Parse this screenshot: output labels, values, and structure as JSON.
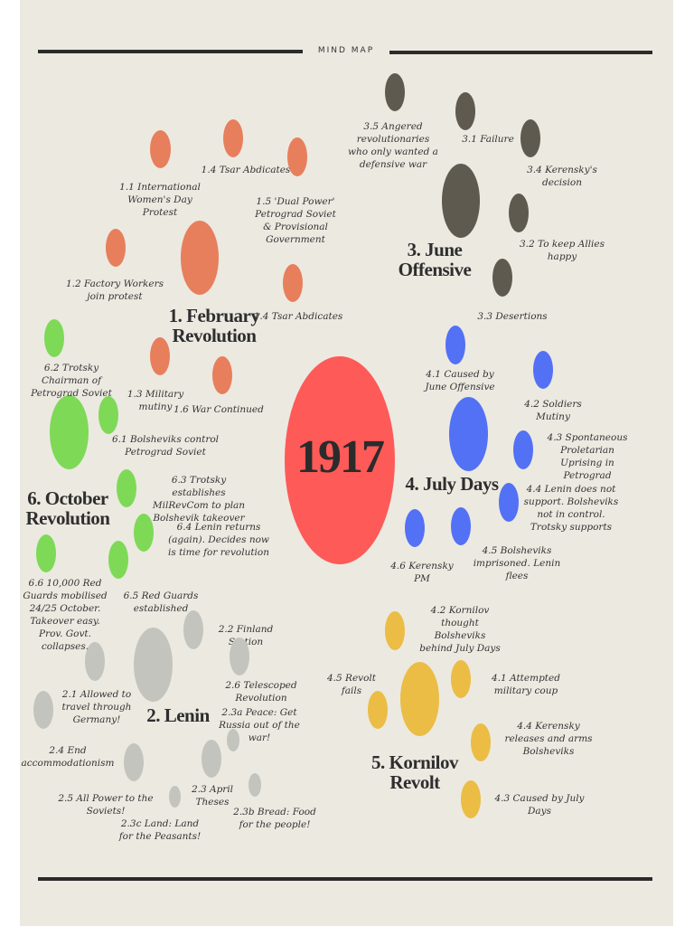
{
  "header": {
    "title": "MIND MAP"
  },
  "center": {
    "label": "1917"
  },
  "colors": {
    "february": "#e77f5c",
    "june": "#5e5a50",
    "july": "#5371f5",
    "kornilov": "#ebbd45",
    "october": "#7ed957",
    "lenin": "#c3c4bd",
    "center": "#fd5a58",
    "background": "#ece9e1"
  },
  "february": {
    "title_num": "1.",
    "title_line1": "February",
    "title_line2": "Revolution",
    "items": {
      "i11": "1.1 International Women's Day Protest",
      "i12": "1.2 Factory Workers join protest",
      "i13": "1.3 Military mutiny",
      "i14a": "1.4 Tsar Abdicates",
      "i14b": "1.4 Tsar Abdicates",
      "i15": "1.5 'Dual Power' Petrograd Soviet & Provisional Government",
      "i16": "1.6 War Continued"
    }
  },
  "june": {
    "title_line1": "3. June",
    "title_line2": "Offensive",
    "items": {
      "i31": "3.1 Failure",
      "i32": "3.2 To keep Allies happy",
      "i33": "3.3 Desertions",
      "i34": "3.4 Kerensky's decision",
      "i35": "3.5 Angered revolutionaries who only wanted a defensive war"
    }
  },
  "july": {
    "title": "4. July Days",
    "items": {
      "i41": "4.1 Caused by June Offensive",
      "i42": "4.2 Soldiers Mutiny",
      "i43": "4.3 Spontaneous Proletarian Uprising in Petrograd",
      "i44": "4.4 Lenin does not support. Bolsheviks not in control. Trotsky supports",
      "i45": "4.5 Bolsheviks imprisoned. Lenin flees",
      "i46": "4.6 Kerensky PM"
    }
  },
  "kornilov": {
    "title_line1": "5. Kornilov",
    "title_line2": "Revolt",
    "items": {
      "i41": "4.1 Attempted military coup",
      "i42": "4.2 Kornilov thought Bolsheviks behind July Days",
      "i43": "4.3 Caused by July Days",
      "i44": "4.4 Kerensky releases and arms Bolsheviks",
      "i45": "4.5 Revolt fails"
    }
  },
  "october": {
    "title_line1": "6. October",
    "title_line2": "Revolution",
    "items": {
      "i61": "6.1 Bolsheviks control Petrograd Soviet",
      "i62": "6.2 Trotsky Chairman of Petrograd Soviet",
      "i63": "6.3 Trotsky establishes MilRevCom to plan Bolshevik takeover",
      "i64": "6.4 Lenin returns (again). Decides now is time for revolution",
      "i65": "6.5 Red Guards established",
      "i66": "6.6 10,000 Red Guards mobilised 24/25 October. Takeover easy. Prov. Govt. collapses."
    }
  },
  "lenin": {
    "title": "2. Lenin",
    "items": {
      "i21": "2.1 Allowed to travel through Germany!",
      "i22": "2.2 Finland Station",
      "i23": "2.3 April Theses",
      "i23a": "2.3a Peace: Get Russia out of the war!",
      "i23b": "2.3b Bread: Food for the people!",
      "i23c": "2.3c Land: Land for the Peasants!",
      "i24": "2.4 End accommodationism",
      "i25": "2.5 All Power to the Soviets!",
      "i26": "2.6 Telescoped Revolution"
    }
  }
}
